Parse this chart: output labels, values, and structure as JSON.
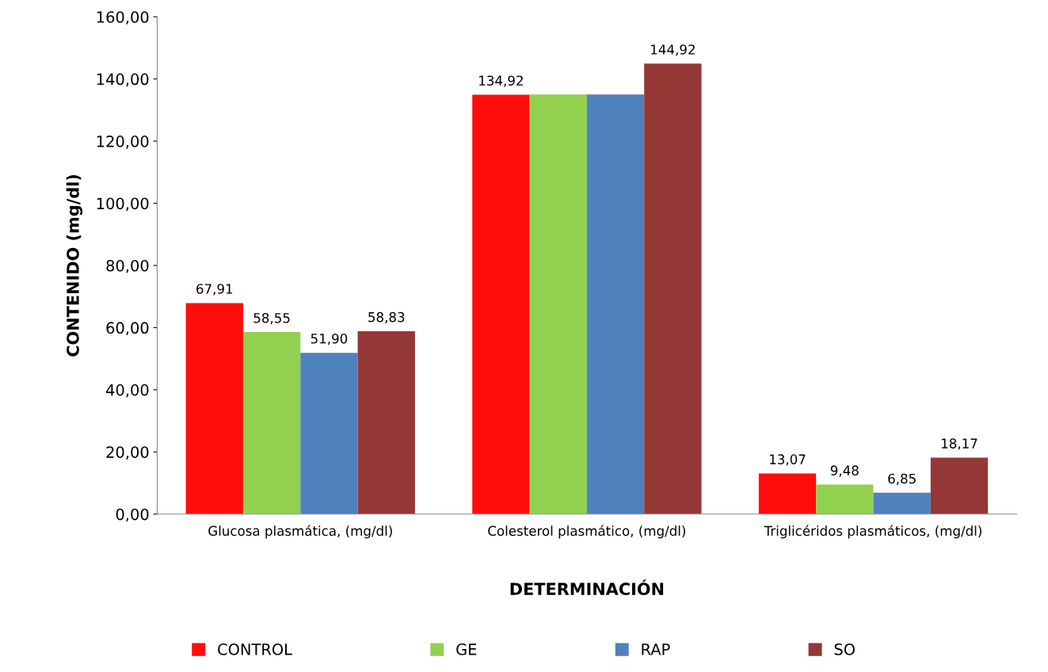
{
  "chart_data": {
    "type": "bar",
    "xlabel": "DETERMINACIÓN",
    "ylabel": "CONTENIDO (mg/dl)",
    "categories": [
      "Glucosa plasmática, (mg/dl)",
      "Colesterol plasmático, (mg/dl)",
      "Triglicéridos plasmáticos, (mg/dl)"
    ],
    "series": [
      {
        "name": "CONTROL",
        "color": "#ff0d0d",
        "values": [
          67.91,
          134.92,
          13.07
        ],
        "value_labels": [
          "67,91",
          "134,92",
          "13,07"
        ]
      },
      {
        "name": "GE",
        "color": "#92d050",
        "values": [
          58.55,
          135,
          9.48
        ],
        "value_labels": [
          "58,55",
          null,
          "9,48"
        ]
      },
      {
        "name": "RAP",
        "color": "#4f81bd",
        "values": [
          51.9,
          135,
          6.85
        ],
        "value_labels": [
          "51,90",
          null,
          "6,85"
        ]
      },
      {
        "name": "SO",
        "color": "#953735",
        "values": [
          58.83,
          144.92,
          18.17
        ],
        "value_labels": [
          "58,83",
          "144,92",
          "18,17"
        ]
      }
    ],
    "ylim": [
      0,
      160
    ],
    "yticks": [
      {
        "value": 0,
        "label": "0,00"
      },
      {
        "value": 20,
        "label": "20,00"
      },
      {
        "value": 40,
        "label": "40,00"
      },
      {
        "value": 60,
        "label": "60,00"
      },
      {
        "value": 80,
        "label": "80,00"
      },
      {
        "value": 100,
        "label": "100,00"
      },
      {
        "value": 120,
        "label": "120,00"
      },
      {
        "value": 140,
        "label": "140,00"
      },
      {
        "value": 160,
        "label": "160,00"
      }
    ],
    "grid": false,
    "legend": "bottom"
  }
}
